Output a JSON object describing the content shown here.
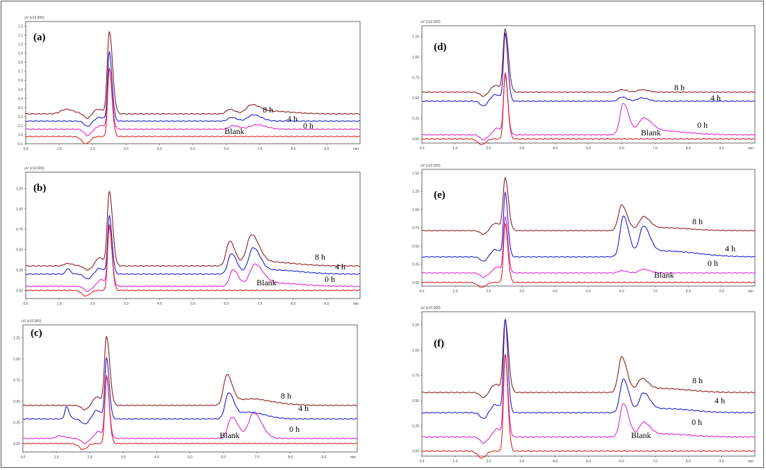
{
  "chart_data": [
    {
      "panel": "(a)",
      "type": "line",
      "yunit": "uV (x10,000)",
      "xlim": [
        0,
        10
      ],
      "ylim": [
        -0.1,
        1.25
      ],
      "xticks": [
        "0.0",
        "1.0",
        "2.0",
        "3.0",
        "4.0",
        "5.0",
        "6.0",
        "7.0",
        "8.0",
        "9.0"
      ],
      "xunit": "min",
      "yticks": [
        "-0.1",
        "0.0",
        "0.1",
        "0.2",
        "0.3",
        "0.4",
        "0.5",
        "0.6",
        "0.7",
        "0.8",
        "0.9",
        "1.0",
        "1.1",
        "1.2"
      ],
      "series": [
        {
          "name": "8 h",
          "color": "#8b1a1a",
          "baseline": 0.23,
          "peaks": [
            [
              1.2,
              0.05,
              0.15
            ],
            [
              2.15,
              0.05,
              0.12
            ],
            [
              2.5,
              0.9,
              0.06
            ],
            [
              6.1,
              0.05,
              0.1
            ],
            [
              6.75,
              0.09,
              0.15
            ],
            [
              7.3,
              0.03,
              0.4
            ]
          ],
          "dips": [
            [
              1.85,
              0.05,
              0.1
            ]
          ]
        },
        {
          "name": "4 h",
          "color": "#1a1ad0",
          "baseline": 0.15,
          "peaks": [
            [
              2.2,
              0.04,
              0.12
            ],
            [
              2.5,
              0.75,
              0.05
            ],
            [
              6.15,
              0.04,
              0.1
            ],
            [
              6.8,
              0.07,
              0.15
            ]
          ],
          "dips": [
            [
              1.85,
              0.06,
              0.1
            ]
          ]
        },
        {
          "name": "0 h",
          "color": "#e020d0",
          "baseline": 0.06,
          "peaks": [
            [
              2.25,
              0.04,
              0.12
            ],
            [
              2.5,
              0.65,
              0.05
            ],
            [
              6.2,
              0.04,
              0.12
            ],
            [
              6.9,
              0.05,
              0.18
            ]
          ],
          "dips": [
            [
              1.85,
              0.07,
              0.1
            ]
          ]
        },
        {
          "name": "Blank",
          "color": "#e02020",
          "baseline": -0.02,
          "peaks": [
            [
              2.5,
              0.75,
              0.05
            ]
          ],
          "dips": [
            [
              1.8,
              0.08,
              0.12
            ]
          ]
        }
      ]
    },
    {
      "panel": "(b)",
      "type": "line",
      "yunit": "uV (x10,000)",
      "xlim": [
        0,
        10
      ],
      "ylim": [
        -0.1,
        1.45
      ],
      "xticks": [
        "0.0",
        "1.0",
        "2.0",
        "3.0",
        "4.0",
        "5.0",
        "6.0",
        "7.0",
        "8.0",
        "9.0"
      ],
      "xunit": "min",
      "yticks": [
        "0.00",
        "0.25",
        "0.50",
        "0.75",
        "1.00",
        "1.25"
      ],
      "series": [
        {
          "name": "8 h",
          "color": "#8b1a1a",
          "baseline": 0.3,
          "peaks": [
            [
              1.25,
              0.03,
              0.1
            ],
            [
              2.2,
              0.1,
              0.1
            ],
            [
              2.5,
              0.9,
              0.06
            ],
            [
              6.1,
              0.3,
              0.1
            ],
            [
              6.75,
              0.35,
              0.14
            ],
            [
              7.2,
              0.05,
              0.5
            ]
          ],
          "dips": [
            [
              1.85,
              0.05,
              0.1
            ]
          ]
        },
        {
          "name": "4 h",
          "color": "#1a1ad0",
          "baseline": 0.2,
          "peaks": [
            [
              1.25,
              0.07,
              0.05
            ],
            [
              2.2,
              0.07,
              0.1
            ],
            [
              2.5,
              0.7,
              0.05
            ],
            [
              6.15,
              0.25,
              0.1
            ],
            [
              6.8,
              0.3,
              0.13
            ],
            [
              7.4,
              0.05,
              0.5
            ]
          ],
          "dips": [
            [
              1.85,
              0.06,
              0.1
            ]
          ]
        },
        {
          "name": "0 h",
          "color": "#e020d0",
          "baseline": 0.05,
          "peaks": [
            [
              2.25,
              0.08,
              0.1
            ],
            [
              2.5,
              0.7,
              0.05
            ],
            [
              6.2,
              0.2,
              0.1
            ],
            [
              6.85,
              0.25,
              0.15
            ],
            [
              7.4,
              0.04,
              0.5
            ]
          ],
          "dips": [
            [
              1.85,
              0.06,
              0.1
            ]
          ]
        },
        {
          "name": "Blank",
          "color": "#e02020",
          "baseline": 0.0,
          "peaks": [
            [
              2.5,
              0.8,
              0.05
            ]
          ],
          "dips": [
            [
              1.8,
              0.07,
              0.12
            ]
          ]
        }
      ]
    },
    {
      "panel": "(c)",
      "type": "line",
      "yunit": "uV (x10,000)",
      "xlim": [
        0,
        10
      ],
      "ylim": [
        -0.1,
        1.4
      ],
      "xticks": [
        "0.0",
        "1.0",
        "2.0",
        "3.0",
        "4.0",
        "5.0",
        "6.0",
        "7.0",
        "8.0",
        "9.0"
      ],
      "xunit": "min",
      "yticks": [
        "0.00",
        "0.25",
        "0.50",
        "0.75",
        "1.00",
        "1.25"
      ],
      "series": [
        {
          "name": "8 h",
          "color": "#8b1a1a",
          "baseline": 0.45,
          "peaks": [
            [
              2.2,
              0.1,
              0.1
            ],
            [
              2.5,
              0.8,
              0.06
            ],
            [
              6.1,
              0.35,
              0.1
            ],
            [
              6.6,
              0.05,
              0.3
            ],
            [
              7.1,
              0.04,
              0.4
            ]
          ],
          "dips": [
            [
              1.85,
              0.05,
              0.1
            ]
          ]
        },
        {
          "name": "4 h",
          "color": "#1a1ad0",
          "baseline": 0.29,
          "peaks": [
            [
              1.3,
              0.14,
              0.05
            ],
            [
              2.2,
              0.1,
              0.1
            ],
            [
              2.5,
              0.7,
              0.05
            ],
            [
              6.15,
              0.3,
              0.1
            ],
            [
              6.75,
              0.08,
              0.3
            ]
          ],
          "dips": [
            [
              1.85,
              0.06,
              0.1
            ]
          ]
        },
        {
          "name": "0 h",
          "color": "#e020d0",
          "baseline": 0.06,
          "peaks": [
            [
              1.1,
              0.03,
              0.1
            ],
            [
              2.25,
              0.08,
              0.1
            ],
            [
              2.5,
              0.7,
              0.05
            ],
            [
              6.25,
              0.25,
              0.12
            ],
            [
              6.9,
              0.3,
              0.15
            ]
          ],
          "dips": [
            [
              1.85,
              0.06,
              0.1
            ]
          ]
        },
        {
          "name": "Blank",
          "color": "#e02020",
          "baseline": 0.0,
          "peaks": [
            [
              2.5,
              0.8,
              0.05
            ]
          ],
          "dips": [
            [
              1.8,
              0.07,
              0.12
            ]
          ]
        }
      ]
    },
    {
      "panel": "(d)",
      "type": "line",
      "yunit": "uV (x10,000)",
      "xlim": [
        0,
        10
      ],
      "ylim": [
        -0.05,
        1.38
      ],
      "xticks": [
        "0.0",
        "1.0",
        "2.0",
        "3.0",
        "4.0",
        "5.0",
        "6.0",
        "7.0",
        "8.0",
        "9.0"
      ],
      "xunit": "min",
      "yticks": [
        "0.00",
        "0.25",
        "0.50",
        "0.75",
        "1.00",
        "1.25"
      ],
      "series": [
        {
          "name": "8 h",
          "color": "#8b1a1a",
          "baseline": 0.57,
          "peaks": [
            [
              2.2,
              0.08,
              0.12
            ],
            [
              2.5,
              0.75,
              0.06
            ],
            [
              6.0,
              0.03,
              0.1
            ],
            [
              6.6,
              0.03,
              0.12
            ]
          ],
          "dips": [
            [
              1.85,
              0.05,
              0.1
            ]
          ]
        },
        {
          "name": "4 h",
          "color": "#1a1ad0",
          "baseline": 0.46,
          "peaks": [
            [
              2.2,
              0.08,
              0.12
            ],
            [
              2.5,
              0.8,
              0.05
            ],
            [
              6.0,
              0.05,
              0.1
            ],
            [
              6.6,
              0.04,
              0.12
            ]
          ],
          "dips": [
            [
              1.85,
              0.06,
              0.1
            ]
          ]
        },
        {
          "name": "0 h",
          "color": "#e020d0",
          "baseline": 0.05,
          "peaks": [
            [
              2.25,
              0.08,
              0.1
            ],
            [
              2.5,
              0.7,
              0.05
            ],
            [
              6.05,
              0.38,
              0.1
            ],
            [
              6.65,
              0.17,
              0.15
            ],
            [
              7.1,
              0.05,
              0.5
            ]
          ],
          "dips": [
            [
              1.85,
              0.06,
              0.1
            ]
          ]
        },
        {
          "name": "Blank",
          "color": "#e02020",
          "baseline": 0.0,
          "peaks": [
            [
              2.5,
              0.8,
              0.05
            ]
          ],
          "dips": [
            [
              1.8,
              0.07,
              0.12
            ]
          ]
        }
      ]
    },
    {
      "panel": "(e)",
      "type": "line",
      "yunit": "uV (x10,000)",
      "xlim": [
        0,
        10
      ],
      "ylim": [
        -0.05,
        1.55
      ],
      "xticks": [
        "0.0",
        "1.0",
        "2.0",
        "3.0",
        "4.0",
        "5.0",
        "6.0",
        "7.0",
        "8.0",
        "9.0"
      ],
      "xunit": "min",
      "yticks": [
        "0.00",
        "0.25",
        "0.50",
        "0.75",
        "1.00",
        "1.25",
        "1.50"
      ],
      "series": [
        {
          "name": "8 h",
          "color": "#8b1a1a",
          "baseline": 0.71,
          "peaks": [
            [
              2.2,
              0.1,
              0.12
            ],
            [
              2.5,
              0.7,
              0.06
            ],
            [
              6.0,
              0.35,
              0.1
            ],
            [
              6.65,
              0.17,
              0.12
            ],
            [
              7.2,
              0.04,
              0.5
            ]
          ],
          "dips": [
            [
              1.85,
              0.05,
              0.1
            ]
          ]
        },
        {
          "name": "4 h",
          "color": "#1a1ad0",
          "baseline": 0.35,
          "peaks": [
            [
              2.2,
              0.1,
              0.12
            ],
            [
              2.5,
              0.85,
              0.05
            ],
            [
              6.05,
              0.55,
              0.1
            ],
            [
              6.65,
              0.38,
              0.12
            ],
            [
              7.3,
              0.08,
              0.6
            ]
          ],
          "dips": [
            [
              1.85,
              0.06,
              0.1
            ]
          ]
        },
        {
          "name": "0 h",
          "color": "#e020d0",
          "baseline": 0.13,
          "peaks": [
            [
              2.25,
              0.08,
              0.1
            ],
            [
              2.5,
              0.75,
              0.05
            ],
            [
              6.0,
              0.03,
              0.1
            ],
            [
              6.65,
              0.05,
              0.12
            ]
          ],
          "dips": [
            [
              1.85,
              0.06,
              0.1
            ]
          ]
        },
        {
          "name": "Blank",
          "color": "#e02020",
          "baseline": 0.0,
          "peaks": [
            [
              2.5,
              0.8,
              0.05
            ]
          ],
          "dips": [
            [
              1.8,
              0.07,
              0.12
            ]
          ]
        }
      ]
    },
    {
      "panel": "(f)",
      "type": "line",
      "yunit": "uV (x10,000)",
      "xlim": [
        0,
        10
      ],
      "ylim": [
        -0.05,
        1.38
      ],
      "xticks": [
        "0.0",
        "1.0",
        "2.0",
        "3.0",
        "4.0",
        "5.0",
        "6.0",
        "7.0",
        "8.0",
        "9.0"
      ],
      "xunit": "min",
      "yticks": [
        "0.00",
        "0.25",
        "0.50",
        "0.75",
        "1.00",
        "1.25"
      ],
      "series": [
        {
          "name": "8 h",
          "color": "#8b1a1a",
          "baseline": 0.58,
          "peaks": [
            [
              2.2,
              0.08,
              0.12
            ],
            [
              2.5,
              0.7,
              0.06
            ],
            [
              6.0,
              0.35,
              0.1
            ],
            [
              6.6,
              0.12,
              0.12
            ],
            [
              7.2,
              0.04,
              0.5
            ]
          ],
          "dips": [
            [
              1.85,
              0.05,
              0.1
            ]
          ]
        },
        {
          "name": "4 h",
          "color": "#1a1ad0",
          "baseline": 0.38,
          "peaks": [
            [
              2.2,
              0.08,
              0.12
            ],
            [
              2.5,
              0.9,
              0.05
            ],
            [
              6.05,
              0.33,
              0.1
            ],
            [
              6.65,
              0.18,
              0.12
            ],
            [
              7.3,
              0.04,
              0.5
            ]
          ],
          "dips": [
            [
              1.85,
              0.06,
              0.1
            ]
          ]
        },
        {
          "name": "0 h",
          "color": "#e020d0",
          "baseline": 0.14,
          "peaks": [
            [
              2.25,
              0.08,
              0.1
            ],
            [
              2.5,
              0.8,
              0.05
            ],
            [
              6.05,
              0.33,
              0.1
            ],
            [
              6.65,
              0.13,
              0.12
            ],
            [
              7.2,
              0.03,
              0.5
            ]
          ],
          "dips": [
            [
              1.85,
              0.06,
              0.1
            ]
          ]
        },
        {
          "name": "Blank",
          "color": "#e02020",
          "baseline": 0.0,
          "peaks": [
            [
              2.5,
              0.95,
              0.05
            ]
          ],
          "dips": [
            [
              1.8,
              0.07,
              0.12
            ]
          ]
        }
      ]
    }
  ]
}
